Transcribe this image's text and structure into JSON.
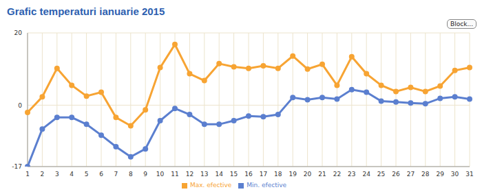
{
  "chart_data": {
    "type": "line",
    "title": "Grafic temperaturi ianuarie 2015",
    "annotation": "Block...",
    "categories": [
      "1",
      "2",
      "3",
      "4",
      "5",
      "6",
      "7",
      "8",
      "9",
      "10",
      "11",
      "12",
      "13",
      "14",
      "15",
      "16",
      "17",
      "18",
      "19",
      "20",
      "21",
      "22",
      "23",
      "24",
      "25",
      "26",
      "27",
      "28",
      "29",
      "30",
      "31"
    ],
    "series": [
      {
        "name": "Max. efective",
        "color": "#f7a433",
        "marker": "circle",
        "values": [
          -2,
          2.3,
          10.2,
          5.5,
          2.5,
          3.6,
          -3.4,
          -5.7,
          -1.3,
          10.4,
          16.8,
          8.7,
          6.8,
          11.5,
          10.6,
          10.2,
          10.9,
          10.2,
          13.6,
          10,
          11.3,
          5.5,
          13.4,
          8.7,
          5.5,
          3.8,
          4.9,
          3.8,
          5.3,
          9.6,
          10.4
        ]
      },
      {
        "name": "Min. efective",
        "color": "#5b7fcf",
        "marker": "circle",
        "values": [
          -17,
          -6.6,
          -3.4,
          -3.4,
          -5.3,
          -8.3,
          -11.5,
          -14.3,
          -12.1,
          -4.3,
          -0.9,
          -2.6,
          -5.3,
          -5.3,
          -4.3,
          -3,
          -3.2,
          -2.6,
          2.1,
          1.5,
          2.1,
          1.7,
          4.3,
          3.6,
          1.1,
          0.9,
          0.6,
          0.4,
          1.9,
          2.3,
          1.7
        ]
      }
    ],
    "ylim": [
      -17,
      20
    ],
    "yticks": [
      -17,
      0,
      20
    ],
    "grid": true,
    "legend": "bottom"
  }
}
